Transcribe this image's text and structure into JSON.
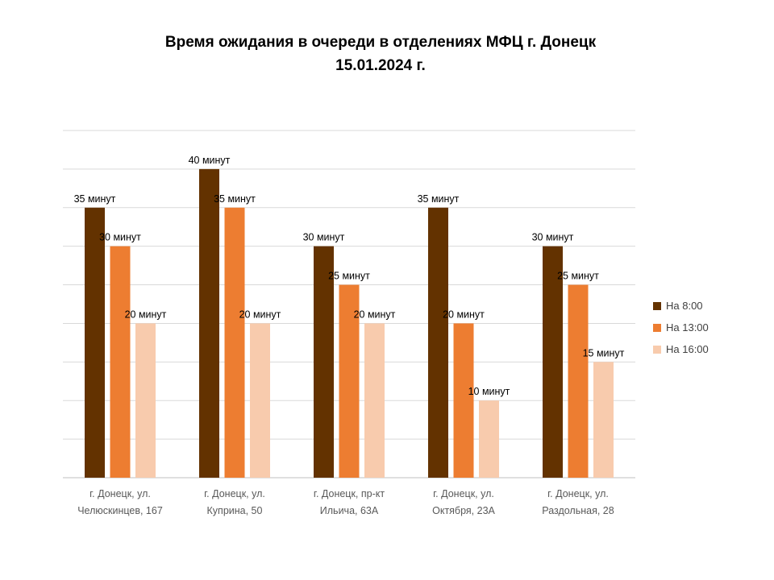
{
  "chart_data": {
    "type": "bar",
    "title": "Время ожидания в очереди в отделениях МФЦ г. Донецк",
    "subtitle": "15.01.2024 г.",
    "categories": [
      [
        "г. Донецк, ул.",
        "Челюскинцев, 167"
      ],
      [
        "г. Донецк, ул.",
        "Куприна, 50"
      ],
      [
        "г. Донецк, пр-кт",
        "Ильича, 63А"
      ],
      [
        "г. Донецк, ул.",
        "Октября, 23А"
      ],
      [
        "г. Донецк, ул.",
        "Раздольная, 28"
      ]
    ],
    "series": [
      {
        "name": "На 8:00",
        "color": "#633200",
        "values": [
          35,
          40,
          30,
          35,
          30
        ],
        "labels": [
          "35 минут",
          "40 минут",
          "30 минут",
          "35 минут",
          "30 минут"
        ]
      },
      {
        "name": "На 13:00",
        "color": "#ED7D31",
        "values": [
          30,
          35,
          25,
          20,
          25
        ],
        "labels": [
          "30 минут",
          "35 минут",
          "25 минут",
          "20 минут",
          "25 минут"
        ]
      },
      {
        "name": "На 16:00",
        "color": "#F8CBAD",
        "values": [
          20,
          20,
          20,
          10,
          15
        ],
        "labels": [
          "20 минут",
          "20 минут",
          "20 минут",
          "10 минут",
          "15 минут"
        ]
      }
    ],
    "ylim": [
      0,
      45
    ],
    "grid": true,
    "legend_position": "right",
    "xlabel": "",
    "ylabel": ""
  }
}
